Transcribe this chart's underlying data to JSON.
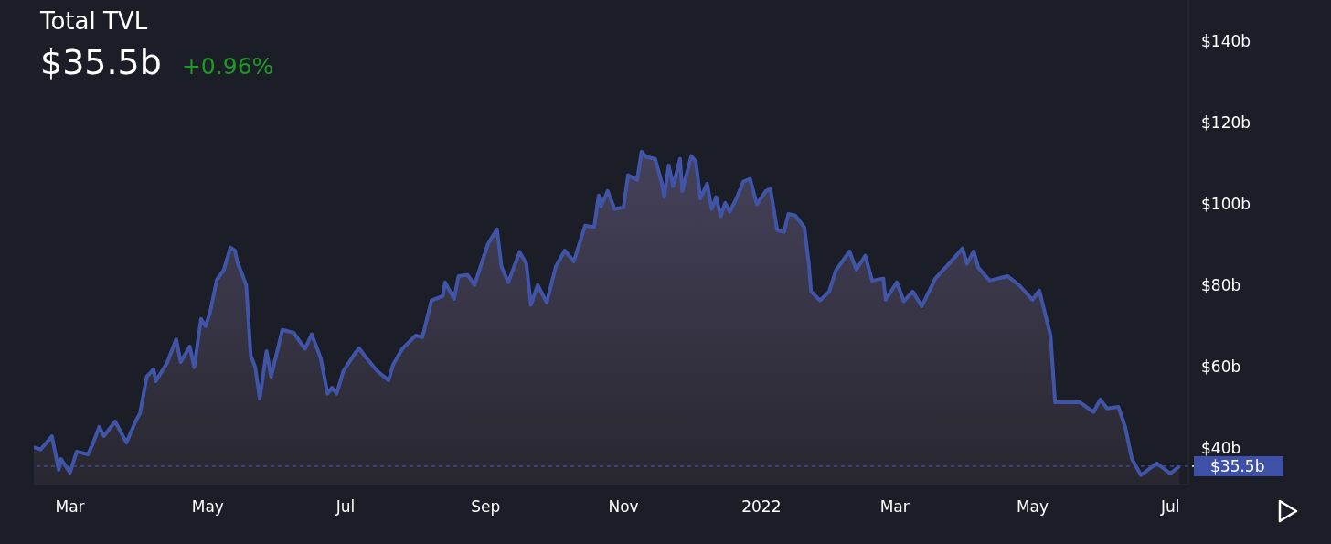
{
  "chart_data": {
    "type": "area",
    "title": "Total TVL",
    "subtitle": "$35.5b",
    "annotations": [
      "+0.96%"
    ],
    "x": [
      "2021-02-13",
      "2021-02-16",
      "2021-02-21",
      "2021-02-24",
      "2021-02-25",
      "2021-03-01",
      "2021-03-04",
      "2021-03-09",
      "2021-03-11",
      "2021-03-14",
      "2021-03-16",
      "2021-03-21",
      "2021-03-26",
      "2021-03-30",
      "2021-04-01",
      "2021-04-04",
      "2021-04-07",
      "2021-04-08",
      "2021-04-13",
      "2021-04-17",
      "2021-04-19",
      "2021-04-23",
      "2021-04-25",
      "2021-04-28",
      "2021-04-30",
      "2021-05-02",
      "2021-05-05",
      "2021-05-08",
      "2021-05-11",
      "2021-05-13",
      "2021-05-14",
      "2021-05-18",
      "2021-05-20",
      "2021-05-22",
      "2021-05-24",
      "2021-05-27",
      "2021-05-29",
      "2021-06-03",
      "2021-06-08",
      "2021-06-13",
      "2021-06-16",
      "2021-06-20",
      "2021-06-23",
      "2021-06-25",
      "2021-06-27",
      "2021-06-30",
      "2021-07-05",
      "2021-07-07",
      "2021-07-10",
      "2021-07-15",
      "2021-07-20",
      "2021-07-22",
      "2021-07-26",
      "2021-08-01",
      "2021-08-04",
      "2021-08-08",
      "2021-08-13",
      "2021-08-14",
      "2021-08-18",
      "2021-08-20",
      "2021-08-24",
      "2021-08-27",
      "2021-09-02",
      "2021-09-06",
      "2021-09-08",
      "2021-09-11",
      "2021-09-16",
      "2021-09-19",
      "2021-09-21",
      "2021-09-24",
      "2021-09-28",
      "2021-10-02",
      "2021-10-06",
      "2021-10-10",
      "2021-10-15",
      "2021-10-19",
      "2021-10-21",
      "2021-10-22",
      "2021-10-25",
      "2021-10-28",
      "2021-11-01",
      "2021-11-03",
      "2021-11-07",
      "2021-11-09",
      "2021-11-11",
      "2021-11-15",
      "2021-11-18",
      "2021-11-19",
      "2021-11-21",
      "2021-11-23",
      "2021-11-26",
      "2021-11-27",
      "2021-12-01",
      "2021-12-03",
      "2021-12-05",
      "2021-12-08",
      "2021-12-10",
      "2021-12-12",
      "2021-12-14",
      "2021-12-16",
      "2021-12-18",
      "2021-12-21",
      "2021-12-24",
      "2021-12-27",
      "2021-12-30",
      "2022-01-03",
      "2022-01-05",
      "2022-01-08",
      "2022-01-11",
      "2022-01-13",
      "2022-01-16",
      "2022-01-20",
      "2022-01-22",
      "2022-01-23",
      "2022-01-27",
      "2022-01-31",
      "2022-02-03",
      "2022-02-09",
      "2022-02-12",
      "2022-02-16",
      "2022-02-19",
      "2022-02-24",
      "2022-02-25",
      "2022-03-02",
      "2022-03-05",
      "2022-03-09",
      "2022-03-13",
      "2022-03-19",
      "2022-03-26",
      "2022-03-31",
      "2022-04-02",
      "2022-04-05",
      "2022-04-07",
      "2022-04-12",
      "2022-04-20",
      "2022-04-25",
      "2022-05-01",
      "2022-05-04",
      "2022-05-09",
      "2022-05-11",
      "2022-05-18",
      "2022-05-22",
      "2022-05-28",
      "2022-05-31",
      "2022-06-03",
      "2022-06-08",
      "2022-06-11",
      "2022-06-14",
      "2022-06-18",
      "2022-06-25",
      "2022-07-01",
      "2022-07-05"
    ],
    "series": [
      {
        "color": "#4055a8",
        "values": [
          40.2,
          39.6,
          42.9,
          34.6,
          37.3,
          33.9,
          39.1,
          38.4,
          40.9,
          45.2,
          42.9,
          46.5,
          41.3,
          46.5,
          48.5,
          57.5,
          59.3,
          56.4,
          60.9,
          66.7,
          61.1,
          64.9,
          59.8,
          71.7,
          69.9,
          73.3,
          81.3,
          83.6,
          89.2,
          88.5,
          85.8,
          80.0,
          62.7,
          59.8,
          52.1,
          63.8,
          57.5,
          69.0,
          68.3,
          64.3,
          67.9,
          62.0,
          53.3,
          54.8,
          53.3,
          58.9,
          63.1,
          64.5,
          62.2,
          58.9,
          56.6,
          60.4,
          64.3,
          67.6,
          67.2,
          76.2,
          77.3,
          80.7,
          76.6,
          82.2,
          82.5,
          80.0,
          90.1,
          93.7,
          84.5,
          80.7,
          88.1,
          85.2,
          75.1,
          80.0,
          75.7,
          84.5,
          88.5,
          85.8,
          94.6,
          94.2,
          102.0,
          99.3,
          103.1,
          98.7,
          99.1,
          107.0,
          105.8,
          112.8,
          111.5,
          111.0,
          104.9,
          101.6,
          109.4,
          104.3,
          111.0,
          103.1,
          111.7,
          110.3,
          101.3,
          104.9,
          98.7,
          101.6,
          96.9,
          100.2,
          98.0,
          101.3,
          105.4,
          106.1,
          99.8,
          103.1,
          103.6,
          93.5,
          93.0,
          97.5,
          97.1,
          94.2,
          85.2,
          78.4,
          76.2,
          78.4,
          83.6,
          88.3,
          83.8,
          87.2,
          81.1,
          81.6,
          76.4,
          80.7,
          76.0,
          78.4,
          74.8,
          81.6,
          85.8,
          89.0,
          85.2,
          88.3,
          84.3,
          81.1,
          82.2,
          80.0,
          76.4,
          78.7,
          67.6,
          51.2,
          51.2,
          51.2,
          48.8,
          51.9,
          49.7,
          50.1,
          45.2,
          37.3,
          33.3,
          36.2,
          33.7,
          35.5
        ]
      }
    ],
    "xlim": [
      "2021-02-13",
      "2022-07-09"
    ],
    "xticks": [
      {
        "value": "2021-03-01",
        "label": "Mar"
      },
      {
        "value": "2021-05-01",
        "label": "May"
      },
      {
        "value": "2021-07-01",
        "label": "Jul"
      },
      {
        "value": "2021-09-01",
        "label": "Sep"
      },
      {
        "value": "2021-11-01",
        "label": "Nov"
      },
      {
        "value": "2022-01-01",
        "label": "2022"
      },
      {
        "value": "2022-03-01",
        "label": "Mar"
      },
      {
        "value": "2022-05-01",
        "label": "May"
      },
      {
        "value": "2022-07-01",
        "label": "Jul"
      }
    ],
    "ylim": [
      31,
      150
    ],
    "yticks": [
      {
        "value": 40,
        "label": "$40b"
      },
      {
        "value": 60,
        "label": "$60b"
      },
      {
        "value": 80,
        "label": "$80b"
      },
      {
        "value": 100,
        "label": "$100b"
      },
      {
        "value": 120,
        "label": "$120b"
      },
      {
        "value": 140,
        "label": "$140b"
      }
    ],
    "ref_lines": [
      {
        "axis": "y",
        "value": 35.5,
        "label": "$35.5b",
        "color": "#3f51a6",
        "line_style": "dashed"
      }
    ],
    "grid": false,
    "legend": false
  }
}
